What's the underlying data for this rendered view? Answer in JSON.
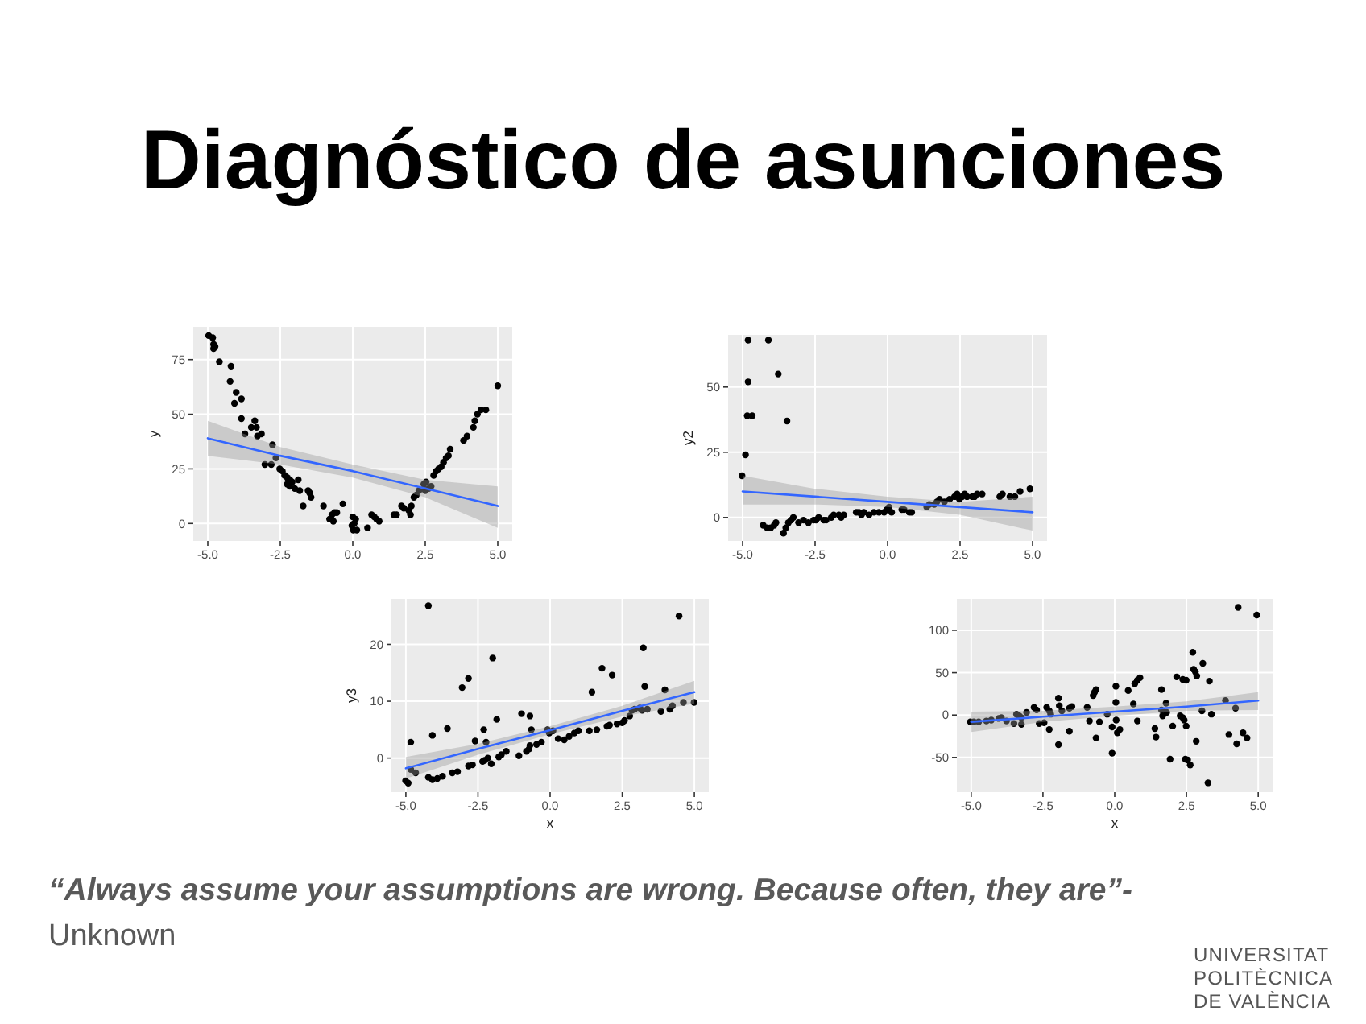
{
  "chart_data": [
    {
      "type": "scatter",
      "title": "Diagnóstico de asunciones",
      "ylabel": "y",
      "xlim": [
        -5.5,
        5.5
      ],
      "ylim": [
        -8,
        90
      ],
      "xticks": [
        {
          "value": -5,
          "label": "-5.0"
        },
        {
          "value": -2.5,
          "label": "-2.5"
        },
        {
          "value": 0,
          "label": "0.0"
        },
        {
          "value": 2.5,
          "label": "2.5"
        },
        {
          "value": 5,
          "label": "5.0"
        }
      ],
      "yticks": [
        0,
        25,
        50,
        75
      ],
      "grid": true,
      "series": [
        {
          "type": "scatter",
          "color": "#000000",
          "marker": "circle",
          "x": [
            -4.97,
            -4.83,
            -4.8,
            -4.75,
            -4.8,
            -4.6,
            -4.2,
            -4.23,
            -4.02,
            -4.08,
            -3.84,
            -3.84,
            -3.72,
            -3.5,
            -3.38,
            -3.32,
            -3.29,
            -3.15,
            -3.03,
            -2.77,
            -2.81,
            -2.65,
            -2.52,
            -2.43,
            -2.35,
            -2.26,
            -2.17,
            -2.09,
            -2.26,
            -2.17,
            -2.0,
            -1.88,
            -1.83,
            -1.49,
            -1.44,
            -1.54,
            -1.71,
            -1.01,
            -0.72,
            -0.63,
            -0.55,
            -0.8,
            -0.67,
            -0.34,
            0.0,
            0.05,
            -0.03,
            0.1,
            0.02,
            0.14,
            0.51,
            0.65,
            0.74,
            0.82,
            0.91,
            1.42,
            1.51,
            1.68,
            1.76,
            1.93,
            2.02,
            1.99,
            2.11,
            2.19,
            2.28,
            2.45,
            2.53,
            2.5,
            2.62,
            2.7,
            2.79,
            2.88,
            2.96,
            3.05,
            3.13,
            3.22,
            3.3,
            3.36,
            3.82,
            3.94,
            4.16,
            4.21,
            4.3,
            4.42,
            4.59,
            5.0
          ],
          "values": [
            86,
            85,
            82,
            81,
            80,
            74,
            72,
            65,
            60,
            55,
            57,
            48,
            41,
            44,
            47,
            44,
            40,
            41,
            27,
            36,
            27,
            30,
            25,
            24,
            22,
            21,
            20,
            19,
            18,
            17,
            16,
            20,
            15,
            14,
            12,
            15,
            8,
            8,
            4,
            5,
            5,
            2,
            1,
            9,
            3,
            0,
            -1,
            2,
            -3,
            -3,
            -2,
            4,
            3,
            2,
            1,
            4,
            4,
            8,
            7,
            6,
            8,
            4,
            12,
            13,
            15,
            18,
            19,
            15,
            16,
            17,
            22,
            24,
            25,
            26,
            28,
            30,
            31,
            34,
            38,
            40,
            44,
            47,
            50,
            52,
            52,
            63
          ]
        },
        {
          "type": "line",
          "color": "#3366ff",
          "x": [
            -5,
            -2.5,
            0,
            2.5,
            5
          ],
          "values": [
            39,
            31,
            24,
            16,
            8
          ],
          "lower": [
            31,
            27,
            21,
            12,
            -2
          ],
          "upper": [
            47,
            35,
            27,
            20,
            17
          ]
        }
      ]
    },
    {
      "type": "scatter",
      "ylabel": "y2",
      "xlim": [
        -5.5,
        5.5
      ],
      "ylim": [
        -9,
        70
      ],
      "xticks": [
        {
          "value": -5,
          "label": "-5.0"
        },
        {
          "value": -2.5,
          "label": "-2.5"
        },
        {
          "value": 0,
          "label": "0.0"
        },
        {
          "value": 2.5,
          "label": "2.5"
        },
        {
          "value": 5,
          "label": "5.0"
        }
      ],
      "yticks": [
        0,
        25,
        50
      ],
      "grid": true,
      "series": [
        {
          "type": "scatter",
          "color": "#000000",
          "marker": "circle",
          "x": [
            -4.81,
            -4.11,
            -4.81,
            -3.77,
            -4.84,
            -4.67,
            -3.47,
            -4.9,
            -5.02,
            -4.29,
            -4.15,
            -4.03,
            -3.91,
            -3.85,
            -3.59,
            -3.51,
            -3.42,
            -3.33,
            -3.25,
            -3.07,
            -2.9,
            -2.73,
            -2.55,
            -2.47,
            -2.38,
            -2.2,
            -2.12,
            -1.94,
            -1.86,
            -1.68,
            -1.6,
            -1.51,
            -1.08,
            -0.99,
            -0.9,
            -0.82,
            -0.64,
            -0.47,
            -0.3,
            -0.12,
            -0.03,
            0.05,
            0.14,
            0.49,
            0.57,
            0.75,
            0.83,
            1.35,
            1.44,
            1.61,
            1.7,
            1.79,
            1.96,
            2.14,
            2.31,
            2.4,
            2.48,
            2.57,
            2.66,
            2.74,
            2.92,
            3.0,
            3.09,
            3.26,
            3.87,
            3.96,
            4.22,
            4.39,
            4.57,
            4.91
          ],
          "values": [
            68,
            68,
            52,
            55,
            39,
            39,
            37,
            24,
            16,
            -3,
            -4,
            -4,
            -3,
            -2,
            -6,
            -4,
            -2,
            -1,
            0,
            -2,
            -1,
            -2,
            -1,
            -1,
            0,
            -1,
            -1,
            0,
            1,
            1,
            0,
            1,
            2,
            2,
            1,
            2,
            1,
            2,
            2,
            2,
            3,
            4,
            2,
            3,
            3,
            2,
            2,
            4,
            5,
            5,
            6,
            7,
            6,
            7,
            8,
            9,
            7,
            8,
            9,
            8,
            8,
            8,
            9,
            9,
            8,
            9,
            8,
            8,
            10,
            11
          ]
        },
        {
          "type": "line",
          "color": "#3366ff",
          "x": [
            -5,
            -2.5,
            0,
            2.5,
            5
          ],
          "values": [
            10,
            8,
            6,
            4,
            2
          ],
          "lower": [
            5,
            5,
            4,
            1,
            -5
          ],
          "upper": [
            16,
            11,
            8,
            6,
            8
          ]
        }
      ]
    },
    {
      "type": "scatter",
      "ylabel": "y3",
      "xlabel": "x",
      "xlim": [
        -5.5,
        5.5
      ],
      "ylim": [
        -6,
        28
      ],
      "xticks": [
        {
          "value": -5,
          "label": "-5.0"
        },
        {
          "value": -2.5,
          "label": "-2.5"
        },
        {
          "value": 0,
          "label": "0.0"
        },
        {
          "value": 2.5,
          "label": "2.5"
        },
        {
          "value": 5,
          "label": "5.0"
        }
      ],
      "yticks": [
        0,
        10,
        20
      ],
      "grid": true,
      "series": [
        {
          "type": "scatter",
          "color": "#000000",
          "marker": "circle",
          "x": [
            -4.22,
            4.47,
            3.23,
            -1.99,
            1.8,
            2.15,
            -2.83,
            -3.05,
            3.28,
            1.45,
            3.98,
            -4.83,
            -4.08,
            -3.56,
            -2.6,
            -2.3,
            -2.22,
            -1.85,
            -0.99,
            -0.7,
            -0.65,
            -0.09,
            -5.01,
            -4.92,
            -4.83,
            -4.66,
            -4.22,
            -4.08,
            -3.91,
            -3.73,
            -3.39,
            -3.21,
            -2.83,
            -2.69,
            -2.34,
            -2.27,
            -2.16,
            -2.04,
            -1.78,
            -1.69,
            -1.52,
            -1.08,
            -0.82,
            -0.73,
            -0.7,
            -0.47,
            -0.3,
            -0.03,
            0.1,
            0.28,
            0.49,
            0.66,
            0.84,
            0.98,
            1.36,
            1.62,
            1.97,
            2.06,
            2.32,
            2.5,
            2.58,
            2.76,
            2.84,
            2.93,
            3.11,
            3.19,
            3.37,
            3.84,
            4.15,
            4.24,
            4.62,
            4.99
          ],
          "values": [
            26.8,
            25.0,
            19.4,
            17.6,
            15.8,
            14.6,
            14.0,
            12.4,
            12.6,
            11.6,
            12.0,
            2.8,
            4.0,
            5.2,
            3.0,
            5.0,
            2.8,
            6.8,
            7.8,
            7.4,
            5.0,
            5.0,
            -4.0,
            -4.4,
            -2.0,
            -2.6,
            -3.4,
            -3.8,
            -3.6,
            -3.2,
            -2.6,
            -2.4,
            -1.4,
            -1.2,
            -0.6,
            -0.4,
            0.0,
            -1.0,
            0.2,
            0.6,
            1.2,
            0.4,
            1.2,
            1.6,
            2.2,
            2.4,
            2.8,
            4.4,
            4.8,
            3.4,
            3.2,
            3.8,
            4.4,
            4.8,
            4.8,
            5.0,
            5.6,
            5.8,
            6.0,
            6.2,
            6.6,
            7.4,
            8.4,
            8.6,
            8.8,
            8.4,
            8.6,
            8.2,
            8.6,
            9.2,
            9.8,
            9.8
          ]
        },
        {
          "type": "line",
          "color": "#3366ff",
          "x": [
            -5,
            -2.5,
            0,
            2.5,
            5
          ],
          "values": [
            -1.8,
            1.6,
            4.9,
            8.3,
            11.6
          ],
          "lower": [
            -3.6,
            0.6,
            4.2,
            7.3,
            9.6
          ],
          "upper": [
            0.2,
            2.5,
            5.6,
            9.2,
            13.6
          ]
        }
      ]
    },
    {
      "type": "scatter",
      "xlabel": "x",
      "xlim": [
        -5.5,
        5.5
      ],
      "ylim": [
        -91,
        137
      ],
      "xticks": [
        {
          "value": -5,
          "label": "-5.0"
        },
        {
          "value": -2.5,
          "label": "-2.5"
        },
        {
          "value": 0,
          "label": "0.0"
        },
        {
          "value": 2.5,
          "label": "2.5"
        },
        {
          "value": 5,
          "label": "5.0"
        }
      ],
      "yticks": [
        -50,
        0,
        50,
        100
      ],
      "grid": true,
      "annotations": [
        "“Always assume your assumptions are wrong. Because often, they are”-",
        "Unknown",
        "UNIVERSITAT POLITÈCNICA DE VALÈNCIA"
      ],
      "series": [
        {
          "type": "scatter",
          "color": "#000000",
          "marker": "circle",
          "x": [
            4.3,
            4.95,
            2.72,
            3.07,
            2.75,
            2.81,
            2.86,
            2.16,
            2.37,
            2.49,
            3.3,
            0.88,
            0.79,
            0.7,
            1.63,
            0.47,
            0.04,
            -0.65,
            -0.7,
            -0.75,
            -1.96,
            3.86,
            1.63,
            1.79,
            0.65,
            0.04,
            -0.96,
            -1.49,
            -1.58,
            -1.93,
            -1.84,
            -2.37,
            -2.28,
            -2.23,
            -2.81,
            -2.72,
            -3.07,
            -3.42,
            -3.33,
            -3.25,
            -3.77,
            -3.95,
            -4.04,
            -4.3,
            -4.47,
            -4.74,
            -4.91,
            -5.03,
            -3.25,
            -3.51,
            -2.63,
            -2.46,
            -2.28,
            -1.58,
            -1.96,
            -0.88,
            -0.53,
            -0.26,
            -0.65,
            -0.09,
            0.05,
            0.09,
            0.18,
            -0.09,
            0.79,
            1.4,
            1.44,
            1.67,
            1.81,
            1.93,
            2.02,
            2.28,
            2.37,
            2.42,
            2.49,
            2.46,
            2.54,
            2.63,
            2.84,
            3.04,
            3.25,
            3.37,
            3.98,
            4.21,
            4.25,
            4.47,
            4.61
          ],
          "values": [
            127,
            118,
            74,
            61,
            54,
            51,
            46,
            45,
            42,
            41,
            40,
            44,
            41,
            37,
            30,
            29,
            34,
            30,
            27,
            23,
            20,
            17,
            6,
            14,
            13,
            15,
            9,
            10,
            8,
            11,
            5,
            9,
            5,
            1,
            9,
            6,
            3,
            1,
            -1,
            -3,
            -7,
            -3,
            -4,
            -6,
            -7,
            -8,
            -8,
            -8,
            -11,
            -10,
            -10,
            -9,
            -17,
            -19,
            -35,
            -7,
            -8,
            1,
            -27,
            -14,
            -6,
            -21,
            -17,
            -45,
            -7,
            -16,
            -26,
            -1,
            3,
            -52,
            -13,
            -1,
            -3,
            -6,
            -13,
            -52,
            -53,
            -59,
            -31,
            5,
            -80,
            1,
            -23,
            8,
            -34,
            -21,
            -27
          ]
        },
        {
          "type": "line",
          "color": "#3366ff",
          "x": [
            -5,
            -2.5,
            0,
            2.5,
            5
          ],
          "values": [
            -8,
            -2,
            4,
            10,
            17
          ],
          "lower": [
            -20,
            -8,
            -1,
            5,
            6
          ],
          "upper": [
            4,
            5,
            10,
            16,
            27
          ]
        }
      ]
    }
  ]
}
